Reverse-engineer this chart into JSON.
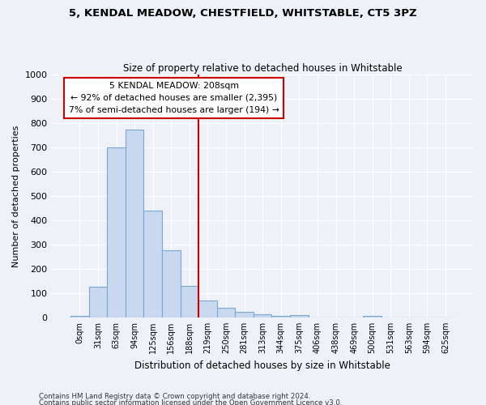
{
  "title_line1": "5, KENDAL MEADOW, CHESTFIELD, WHITSTABLE, CT5 3PZ",
  "title_line2": "Size of property relative to detached houses in Whitstable",
  "xlabel": "Distribution of detached houses by size in Whitstable",
  "ylabel": "Number of detached properties",
  "bar_labels": [
    "0sqm",
    "31sqm",
    "63sqm",
    "94sqm",
    "125sqm",
    "156sqm",
    "188sqm",
    "219sqm",
    "250sqm",
    "281sqm",
    "313sqm",
    "344sqm",
    "375sqm",
    "406sqm",
    "438sqm",
    "469sqm",
    "500sqm",
    "531sqm",
    "563sqm",
    "594sqm",
    "625sqm"
  ],
  "bar_values": [
    5,
    125,
    700,
    775,
    440,
    275,
    130,
    70,
    40,
    22,
    12,
    8,
    10,
    0,
    0,
    0,
    8,
    0,
    0,
    0,
    0
  ],
  "bar_color": "#c8d8ee",
  "bar_edge_color": "#7aa8d0",
  "property_line_idx": 7,
  "property_label": "5 KENDAL MEADOW: 208sqm",
  "annotation_line1": "← 92% of detached houses are smaller (2,395)",
  "annotation_line2": "7% of semi-detached houses are larger (194) →",
  "vline_color": "#cc0000",
  "annotation_border_color": "#cc0000",
  "ylim": [
    0,
    1000
  ],
  "yticks": [
    0,
    100,
    200,
    300,
    400,
    500,
    600,
    700,
    800,
    900,
    1000
  ],
  "footnote1": "Contains HM Land Registry data © Crown copyright and database right 2024.",
  "footnote2": "Contains public sector information licensed under the Open Government Licence v3.0.",
  "bg_color": "#eef2f8",
  "grid_color": "#ffffff"
}
